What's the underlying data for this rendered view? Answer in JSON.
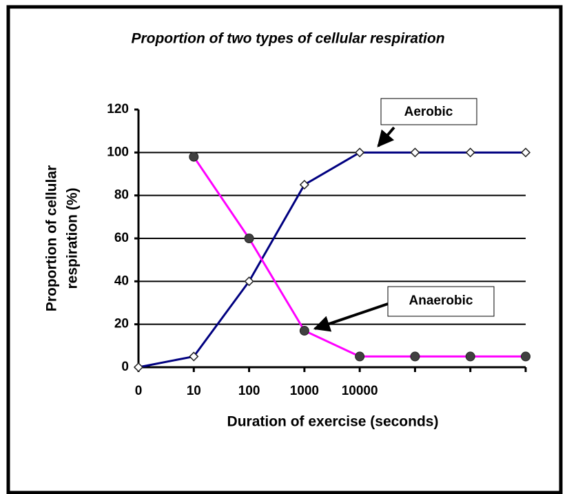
{
  "chart_data": {
    "type": "line",
    "title": "Proportion of two types of cellular respiration",
    "xlabel": "Duration of exercise (seconds)",
    "ylabel": [
      "Proportion of cellular",
      "respiration (%)"
    ],
    "categories": [
      "0",
      "10",
      "100",
      "1000",
      "10000",
      null,
      null,
      null
    ],
    "series": [
      {
        "name": "Aerobic",
        "color": "#000080",
        "marker": "diamond",
        "values": [
          0,
          5,
          40,
          85,
          100,
          100,
          100,
          100
        ]
      },
      {
        "name": "Anaerobic",
        "color": "#ff00ff",
        "marker": "circle",
        "values": [
          null,
          98,
          60,
          17,
          5,
          5,
          5,
          5
        ]
      }
    ],
    "ylim": [
      0,
      120
    ],
    "yticks": [
      0,
      20,
      40,
      60,
      80,
      100,
      120
    ],
    "grid": true
  }
}
